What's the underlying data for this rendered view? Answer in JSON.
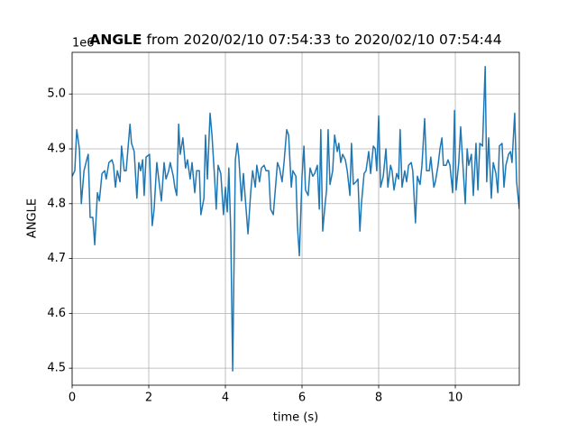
{
  "chart_data": {
    "type": "line",
    "title_bold": "ANGLE",
    "title": "from 2020/02/10 07:54:33 to 2020/02/10 07:54:44",
    "y_offset_label": "1e6",
    "xlabel": "time (s)",
    "ylabel": "ANGLE",
    "xlim": [
      0,
      11.67
    ],
    "ylim": [
      4.469,
      5.076
    ],
    "xticks": [
      0,
      2,
      4,
      6,
      8,
      10
    ],
    "yticks": [
      4.5,
      4.6,
      4.7,
      4.8,
      4.9,
      {
        "value": 5,
        "label": "5.0"
      }
    ],
    "grid": true,
    "color": "#1f77b4",
    "x": [
      0,
      0.07,
      0.12,
      0.19,
      0.24,
      0.31,
      0.38,
      0.42,
      0.47,
      0.54,
      0.59,
      0.66,
      0.71,
      0.78,
      0.85,
      0.89,
      0.96,
      1.04,
      1.08,
      1.13,
      1.18,
      1.25,
      1.29,
      1.36,
      1.41,
      1.51,
      1.55,
      1.62,
      1.69,
      1.74,
      1.79,
      1.84,
      1.88,
      1.93,
      2.02,
      2.09,
      2.14,
      2.21,
      2.26,
      2.33,
      2.4,
      2.45,
      2.52,
      2.56,
      2.64,
      2.68,
      2.73,
      2.78,
      2.82,
      2.89,
      2.96,
      3.01,
      3.08,
      3.13,
      3.2,
      3.25,
      3.32,
      3.36,
      3.44,
      3.48,
      3.53,
      3.6,
      3.65,
      3.72,
      3.76,
      3.81,
      3.88,
      3.95,
      4.0,
      4.05,
      4.09,
      4.14,
      4.19,
      4.26,
      4.31,
      4.35,
      4.42,
      4.47,
      4.54,
      4.59,
      4.66,
      4.71,
      4.78,
      4.82,
      4.89,
      4.94,
      5.01,
      5.06,
      5.13,
      5.18,
      5.25,
      5.29,
      5.36,
      5.41,
      5.48,
      5.53,
      5.6,
      5.65,
      5.72,
      5.76,
      5.84,
      5.88,
      5.93,
      6.0,
      6.05,
      6.09,
      6.16,
      6.21,
      6.28,
      6.33,
      6.4,
      6.45,
      6.49,
      6.54,
      6.59,
      6.64,
      6.68,
      6.73,
      6.8,
      6.85,
      6.92,
      6.96,
      7.01,
      7.06,
      7.13,
      7.18,
      7.25,
      7.29,
      7.34,
      7.41,
      7.46,
      7.51,
      7.55,
      7.62,
      7.67,
      7.74,
      7.79,
      7.86,
      7.91,
      7.95,
      8.0,
      8.05,
      8.12,
      8.19,
      8.24,
      8.31,
      8.35,
      8.4,
      8.47,
      8.52,
      8.56,
      8.61,
      8.68,
      8.73,
      8.78,
      8.85,
      8.89,
      8.96,
      9.01,
      9.08,
      9.13,
      9.2,
      9.25,
      9.32,
      9.36,
      9.44,
      9.48,
      9.55,
      9.6,
      9.65,
      9.69,
      9.76,
      9.81,
      9.86,
      9.93,
      9.98,
      10.02,
      10.09,
      10.14,
      10.19,
      10.26,
      10.31,
      10.35,
      10.42,
      10.47,
      10.54,
      10.59,
      10.64,
      10.71,
      10.78,
      10.82,
      10.87,
      10.94,
      10.99,
      11.06,
      11.11,
      11.15,
      11.22,
      11.27,
      11.32,
      11.39,
      11.44,
      11.48,
      11.55,
      11.6,
      11.67
    ],
    "values": [
      4.85,
      4.86,
      4.935,
      4.9,
      4.8,
      4.86,
      4.88,
      4.89,
      4.775,
      4.775,
      4.725,
      4.82,
      4.805,
      4.855,
      4.86,
      4.845,
      4.875,
      4.88,
      4.87,
      4.83,
      4.86,
      4.84,
      4.905,
      4.86,
      4.86,
      4.945,
      4.91,
      4.895,
      4.81,
      4.875,
      4.86,
      4.88,
      4.815,
      4.885,
      4.89,
      4.76,
      4.79,
      4.875,
      4.845,
      4.805,
      4.875,
      4.845,
      4.86,
      4.875,
      4.85,
      4.83,
      4.815,
      4.945,
      4.89,
      4.92,
      4.865,
      4.88,
      4.845,
      4.875,
      4.82,
      4.86,
      4.86,
      4.78,
      4.81,
      4.925,
      4.845,
      4.965,
      4.925,
      4.845,
      4.79,
      4.87,
      4.855,
      4.78,
      4.83,
      4.785,
      4.865,
      4.75,
      4.495,
      4.88,
      4.91,
      4.885,
      4.805,
      4.855,
      4.79,
      4.745,
      4.82,
      4.86,
      4.83,
      4.87,
      4.84,
      4.865,
      4.87,
      4.86,
      4.86,
      4.79,
      4.78,
      4.815,
      4.875,
      4.865,
      4.84,
      4.875,
      4.935,
      4.925,
      4.83,
      4.86,
      4.85,
      4.76,
      4.705,
      4.85,
      4.905,
      4.825,
      4.815,
      4.865,
      4.85,
      4.855,
      4.87,
      4.79,
      4.935,
      4.75,
      4.79,
      4.825,
      4.935,
      4.835,
      4.86,
      4.925,
      4.895,
      4.91,
      4.875,
      4.89,
      4.88,
      4.86,
      4.815,
      4.91,
      4.835,
      4.84,
      4.845,
      4.75,
      4.8,
      4.855,
      4.86,
      4.895,
      4.855,
      4.905,
      4.9,
      4.86,
      4.96,
      4.83,
      4.85,
      4.9,
      4.83,
      4.87,
      4.86,
      4.825,
      4.855,
      4.845,
      4.935,
      4.83,
      4.86,
      4.84,
      4.87,
      4.875,
      4.86,
      4.765,
      4.85,
      4.835,
      4.87,
      4.955,
      4.86,
      4.86,
      4.885,
      4.83,
      4.84,
      4.87,
      4.9,
      4.92,
      4.87,
      4.87,
      4.88,
      4.87,
      4.82,
      4.97,
      4.825,
      4.875,
      4.94,
      4.88,
      4.8,
      4.9,
      4.87,
      4.89,
      4.815,
      4.91,
      4.825,
      4.91,
      4.905,
      5.05,
      4.84,
      4.92,
      4.81,
      4.875,
      4.855,
      4.82,
      4.905,
      4.91,
      4.83,
      4.87,
      4.89,
      4.895,
      4.875,
      4.965,
      4.84,
      4.79
    ]
  }
}
